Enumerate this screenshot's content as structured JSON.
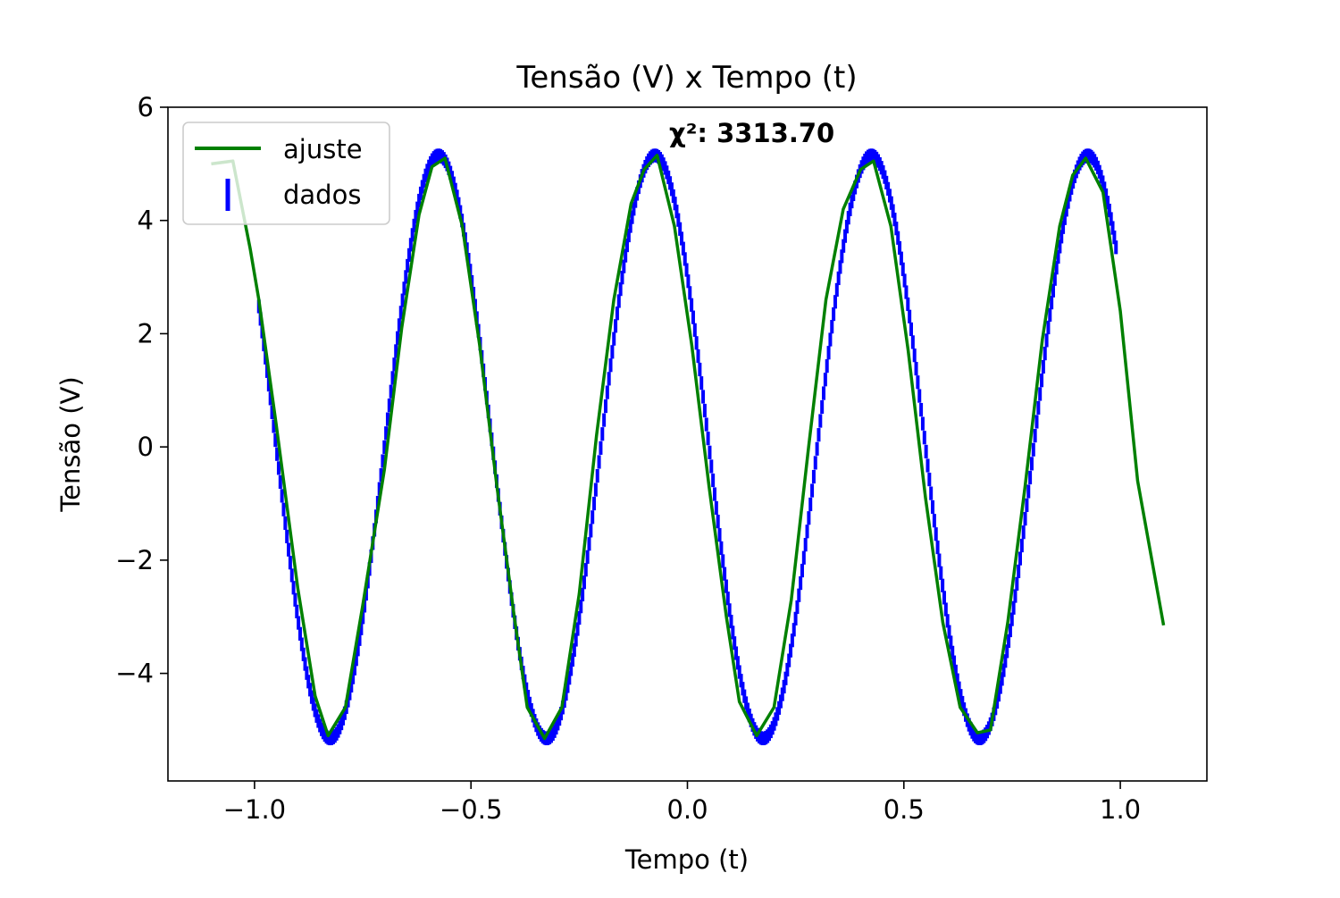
{
  "chart_data": {
    "type": "line",
    "title": "Tensão (V) x Tempo (t)",
    "xlabel": "Tempo (t)",
    "ylabel": "Tensão (V)",
    "xlim": [
      -1.2,
      1.2
    ],
    "ylim": [
      -5.9,
      6.0
    ],
    "xticks": [
      -1.0,
      -0.5,
      0.0,
      0.5,
      1.0
    ],
    "xtick_labels": [
      "−1.0",
      "−0.5",
      "0.0",
      "0.5",
      "1.0"
    ],
    "yticks": [
      -4,
      -2,
      0,
      2,
      4,
      6
    ],
    "ytick_labels": [
      "−4",
      "−2",
      "0",
      "2",
      "4",
      "6"
    ],
    "grid": false,
    "legend_position": "upper-left",
    "annotation": "χ²: 3313.70",
    "colors": {
      "fit": "#008000",
      "data": "#0000ff",
      "axes": "#000000"
    },
    "series": [
      {
        "name": "ajuste",
        "kind": "line",
        "points": [
          [
            -1.1,
            5.0
          ],
          [
            -1.05,
            5.05
          ],
          [
            -1.01,
            3.5
          ],
          [
            -0.99,
            2.6
          ],
          [
            -0.95,
            0.4
          ],
          [
            -0.9,
            -2.5
          ],
          [
            -0.86,
            -4.4
          ],
          [
            -0.83,
            -5.1
          ],
          [
            -0.79,
            -4.6
          ],
          [
            -0.75,
            -2.8
          ],
          [
            -0.7,
            -0.4
          ],
          [
            -0.66,
            2.1
          ],
          [
            -0.62,
            4.1
          ],
          [
            -0.59,
            4.95
          ],
          [
            -0.56,
            5.1
          ],
          [
            -0.52,
            3.9
          ],
          [
            -0.48,
            1.8
          ],
          [
            -0.44,
            -0.7
          ],
          [
            -0.4,
            -3.0
          ],
          [
            -0.37,
            -4.6
          ],
          [
            -0.33,
            -5.15
          ],
          [
            -0.29,
            -4.6
          ],
          [
            -0.25,
            -2.6
          ],
          [
            -0.21,
            0.2
          ],
          [
            -0.17,
            2.6
          ],
          [
            -0.13,
            4.3
          ],
          [
            -0.1,
            4.9
          ],
          [
            -0.07,
            5.15
          ],
          [
            -0.03,
            3.9
          ],
          [
            0.01,
            1.8
          ],
          [
            0.05,
            -0.7
          ],
          [
            0.09,
            -3.0
          ],
          [
            0.12,
            -4.5
          ],
          [
            0.16,
            -5.1
          ],
          [
            0.2,
            -4.6
          ],
          [
            0.24,
            -2.7
          ],
          [
            0.28,
            0.0
          ],
          [
            0.32,
            2.6
          ],
          [
            0.36,
            4.2
          ],
          [
            0.4,
            4.9
          ],
          [
            0.43,
            5.05
          ],
          [
            0.47,
            3.9
          ],
          [
            0.51,
            1.7
          ],
          [
            0.55,
            -0.9
          ],
          [
            0.59,
            -3.1
          ],
          [
            0.63,
            -4.6
          ],
          [
            0.67,
            -5.05
          ],
          [
            0.7,
            -5.0
          ],
          [
            0.74,
            -3.1
          ],
          [
            0.78,
            -0.7
          ],
          [
            0.82,
            1.9
          ],
          [
            0.86,
            3.9
          ],
          [
            0.89,
            4.8
          ],
          [
            0.92,
            5.1
          ],
          [
            0.96,
            4.5
          ],
          [
            1.0,
            2.4
          ],
          [
            1.04,
            -0.6
          ],
          [
            1.1,
            -3.15
          ]
        ]
      },
      {
        "name": "dados",
        "kind": "errorbar",
        "x_range": [
          -0.99,
          0.99
        ],
        "amplitude": 5.15,
        "period": 0.5,
        "phase_peak": -0.075,
        "yerr": 0.12,
        "count": 520
      }
    ]
  }
}
